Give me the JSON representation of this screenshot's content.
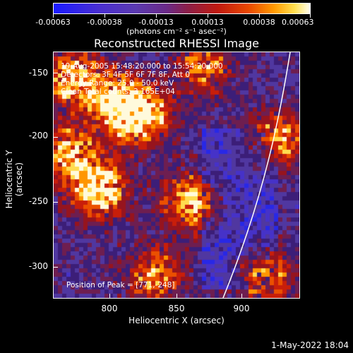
{
  "colorbar": {
    "tick_labels": [
      "-0.00063",
      "-0.00038",
      "-0.00013",
      "0.00013",
      "0.00038",
      "0.00063"
    ],
    "unit_label": "(photons cm⁻² s⁻¹ asec⁻²)"
  },
  "title": "Reconstructed RHESSI Image",
  "info": {
    "time": "19-Aug-2005 15:48:20.000 to 15:54:20.000",
    "detectors": "Detectors: 3F 4F 5F 6F 7F 8F, Att 0",
    "energy": "Energy Range: 25.0 - 50.0 keV",
    "clean": "Clean    Total counts: 3.165E+04",
    "peak": "Position of Peak = [771,-248]"
  },
  "axes": {
    "x_label": "Heliocentric X (arcsec)",
    "y_label": "Heliocentric Y (arcsec)",
    "x_ticks": [
      "800",
      "850",
      "900"
    ],
    "y_ticks": [
      "-150",
      "-200",
      "-250",
      "-300"
    ]
  },
  "timestamp": "1-May-2022 18:04"
}
